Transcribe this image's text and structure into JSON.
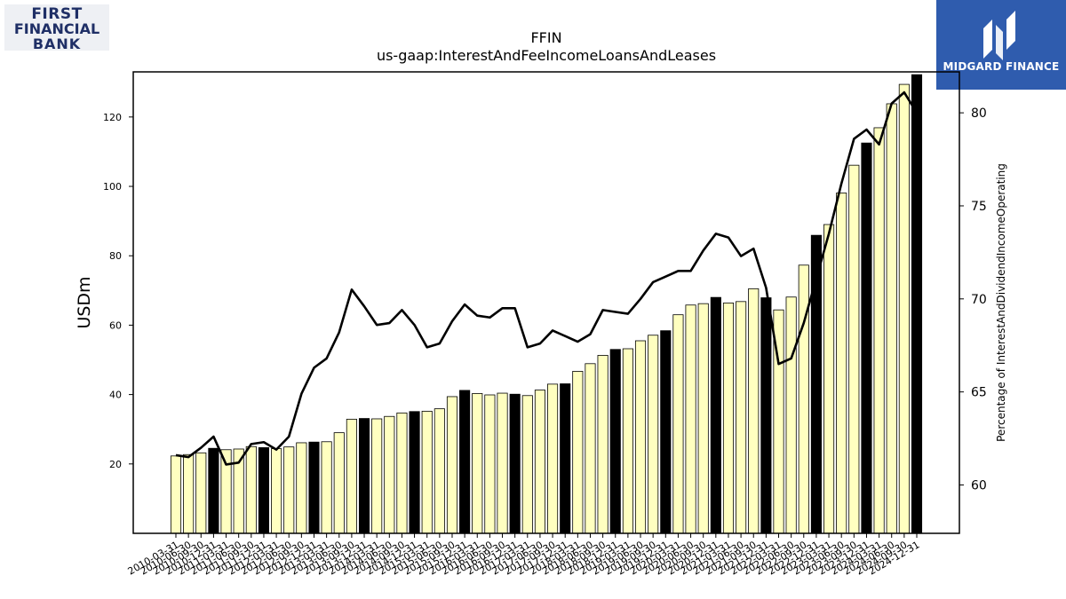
{
  "logos": {
    "left": {
      "line1": "FIRST",
      "line2": "FINANCIAL",
      "line3": "BANK"
    },
    "right": {
      "name": "MIDGARD FINANCE",
      "icon": "midgard-m-icon"
    }
  },
  "chart_data": {
    "type": "bar",
    "title": "FFIN",
    "subtitle": "us-gaap:InterestAndFeeIncomeLoansAndLeases",
    "ylabel": "USDm",
    "y2label": "Percentage of InterestAndDividendIncomeOperating",
    "ylim": [
      0,
      133
    ],
    "y2lim": [
      57.4,
      82.2
    ],
    "yticks": [
      20,
      40,
      60,
      80,
      100,
      120
    ],
    "y2ticks": [
      60,
      65,
      70,
      75,
      80
    ],
    "bar_fill": "#ffffc0",
    "bar_fill_q4": "#000000",
    "line_color": "#000000",
    "categories": [
      "2010-03-31",
      "2010-06-30",
      "2010-09-30",
      "2010-12-31",
      "2011-03-31",
      "2011-06-30",
      "2011-09-30",
      "2011-12-31",
      "2012-03-31",
      "2012-06-30",
      "2012-09-30",
      "2012-12-31",
      "2013-03-31",
      "2013-06-30",
      "2013-09-30",
      "2013-12-31",
      "2014-03-31",
      "2014-06-30",
      "2014-09-30",
      "2014-12-31",
      "2015-03-31",
      "2015-06-30",
      "2015-09-30",
      "2015-12-31",
      "2016-03-31",
      "2016-06-30",
      "2016-09-30",
      "2016-12-31",
      "2017-03-31",
      "2017-06-30",
      "2017-09-30",
      "2017-12-31",
      "2018-03-31",
      "2018-06-30",
      "2018-09-30",
      "2018-12-31",
      "2019-03-31",
      "2019-06-30",
      "2019-09-30",
      "2019-12-31",
      "2020-03-31",
      "2020-06-30",
      "2020-09-30",
      "2020-12-31",
      "2021-03-31",
      "2021-06-30",
      "2021-09-30",
      "2021-12-31",
      "2022-03-31",
      "2022-06-30",
      "2022-09-30",
      "2022-12-31",
      "2023-03-31",
      "2023-06-30",
      "2023-09-30",
      "2023-12-31",
      "2024-03-31",
      "2024-06-30",
      "2024-09-30",
      "2024-12-31"
    ],
    "visible_tick_labels": [
      "2010-03-31",
      "2010-06-30",
      "2010-09-30",
      "2010-12-31",
      "2011-03-31",
      "2011-06-30",
      "2011-09-30",
      "2011-12-31",
      "2012-03-31",
      "2012-06-30",
      "2012-09-30",
      "2012-12-31",
      "2013-03-31",
      "2013-06-30",
      "2013-09-30",
      "2013-12-31",
      "2014-03-31",
      "2014-06-30",
      "2014-09-30",
      "2014-12-31",
      "2015-03-31",
      "2015-06-30",
      "2015-09-30",
      "2015-12-31",
      "2016-03-31",
      "2016-06-30",
      "2016-09-30",
      "2016-12-31",
      "2017-03-31",
      "2017-06-30",
      "2017-09-30",
      "2017-12-31",
      "2018-03-31",
      "2018-06-30",
      "2018-09-30",
      "2018-12-31",
      "2019-03-31",
      "2019-06-30",
      "2019-09-30",
      "2019-12-31",
      "2020-03-31",
      "2020-06-30",
      "2020-09-30",
      "2020-12-31",
      "2021-03-31",
      "2021-06-30",
      "2021-09-30",
      "2021-12-31",
      "2022-03-31",
      "2022-06-30",
      "2022-09-30",
      "2022-12-31",
      "2023-03-31",
      "2023-06-30",
      "2023-09-30",
      "2023-12-31",
      "2024-03-31",
      "2024-06-30",
      "2024-09-30",
      "2024-12-31"
    ],
    "series": [
      {
        "axis": "left",
        "type": "bar",
        "values": [
          22.3,
          22.7,
          23.2,
          24.5,
          24.1,
          24.3,
          25.0,
          24.7,
          24.4,
          24.9,
          26.1,
          26.3,
          26.4,
          29.0,
          32.9,
          33.1,
          33.0,
          33.7,
          34.7,
          35.1,
          35.2,
          35.9,
          39.4,
          41.2,
          40.3,
          39.9,
          40.4,
          40.1,
          39.7,
          41.3,
          43.0,
          43.1,
          46.7,
          48.9,
          51.3,
          53.0,
          53.2,
          55.5,
          57.1,
          58.4,
          63.0,
          65.8,
          66.2,
          68.0,
          66.4,
          66.8,
          70.5,
          67.9,
          64.4,
          68.1,
          77.3,
          85.9,
          89.0,
          98.1,
          106.1,
          112.5,
          116.9,
          123.8,
          129.4,
          132.2
        ]
      },
      {
        "axis": "right",
        "type": "line",
        "values": [
          61.6,
          61.5,
          62.0,
          62.6,
          61.1,
          61.2,
          62.2,
          62.3,
          61.9,
          62.6,
          64.9,
          66.3,
          66.8,
          68.2,
          70.5,
          69.6,
          68.6,
          68.7,
          69.4,
          68.6,
          67.4,
          67.6,
          68.8,
          69.7,
          69.1,
          69.0,
          69.5,
          69.5,
          67.4,
          67.6,
          68.3,
          68.0,
          67.7,
          68.1,
          69.4,
          69.3,
          69.2,
          70.0,
          70.9,
          71.2,
          71.5,
          71.5,
          72.6,
          73.5,
          73.3,
          72.3,
          72.7,
          70.6,
          66.5,
          66.8,
          68.7,
          71.1,
          73.5,
          76.2,
          78.6,
          79.1,
          78.3,
          80.5,
          81.1,
          80.0
        ]
      }
    ]
  }
}
